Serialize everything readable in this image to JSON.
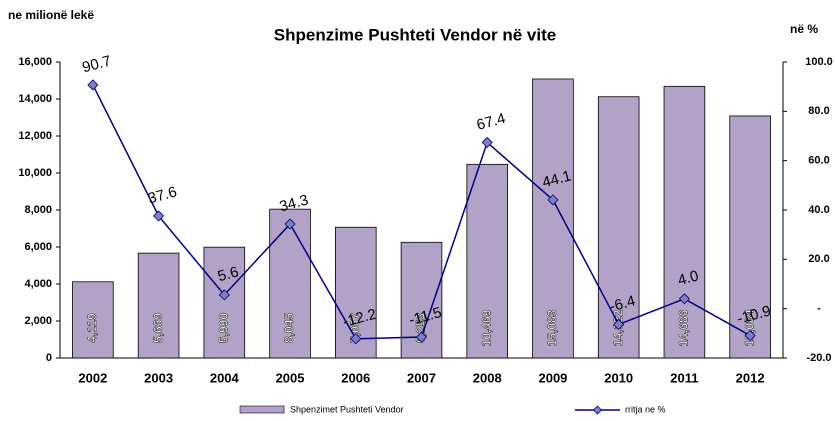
{
  "chart_data": {
    "type": "bar",
    "title": "Shpenzime Pushteti Vendor në vite",
    "y_label": "ne milionë lekë",
    "y2_label": "në %",
    "categories": [
      "2002",
      "2003",
      "2004",
      "2005",
      "2006",
      "2007",
      "2008",
      "2009",
      "2010",
      "2011",
      "2012"
    ],
    "series": [
      {
        "name": "Shpenzimet Pushteti Vendor",
        "type": "bar",
        "color": "#b3a2c7",
        "values": [
          4119,
          5669,
          5990,
          8045,
          7067,
          6253,
          10469,
          15083,
          14122,
          14686,
          13084
        ],
        "value_labels": [
          "4,119",
          "5,669",
          "5,990",
          "8,045",
          "7,067",
          "6,253",
          "10,469",
          "15,083",
          "14,122",
          "14,686",
          "13,084"
        ]
      },
      {
        "name": "rritja ne %",
        "type": "line",
        "axis": "y2",
        "color": "#000080",
        "marker_color": "#7f7fbf",
        "values": [
          90.7,
          37.6,
          5.6,
          34.3,
          -12.2,
          -11.5,
          67.4,
          44.1,
          -6.4,
          4.0,
          -10.9
        ],
        "value_labels": [
          "90.7",
          "37.6",
          "5.6",
          "34.3",
          "-12.2",
          "-11.5",
          "67.4",
          "44.1",
          "-6.4",
          "4.0",
          "-10.9"
        ]
      }
    ],
    "ylim": [
      0,
      16000
    ],
    "yticks": [
      0,
      {
        "value": 2000,
        "label": "2,000"
      },
      {
        "value": 4000,
        "label": "4,000"
      },
      {
        "value": 6000,
        "label": "6,000"
      },
      {
        "value": 8000,
        "label": "8,000"
      },
      {
        "value": 10000,
        "label": "10,000"
      },
      {
        "value": 12000,
        "label": "12,000"
      },
      {
        "value": 14000,
        "label": "14,000"
      },
      {
        "value": 16000,
        "label": "16,000"
      }
    ],
    "y2lim": [
      -20,
      100
    ],
    "y2ticks": [
      {
        "value": -20,
        "label": "-20.0"
      },
      {
        "value": 0,
        "label": "-"
      },
      {
        "value": 20,
        "label": "20.0"
      },
      {
        "value": 40,
        "label": "40.0"
      },
      {
        "value": 60,
        "label": "60.0"
      },
      {
        "value": 80,
        "label": "80.0"
      },
      {
        "value": 100,
        "label": "100.0"
      }
    ]
  }
}
